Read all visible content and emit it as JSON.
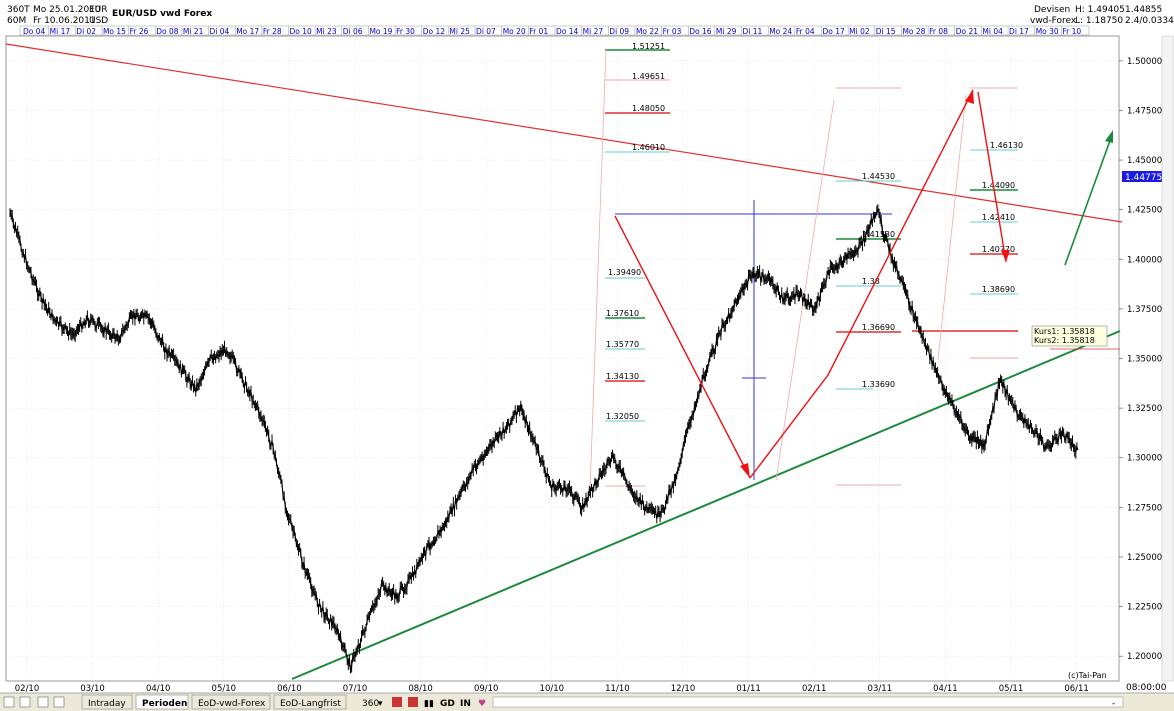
{
  "header": {
    "period_code": "360T",
    "interval_code": "60M",
    "date_from": "Mo 25.01.2010",
    "date_to": "Fr 10.06.2011",
    "base": "EUR",
    "quote": "USD",
    "title": "EUR/USD  vwd Forex",
    "category": "Devisen",
    "source": "vwd-Forex",
    "high_label": "H: 1.49405",
    "low_label": "L: 1.18750",
    "top_right_value": "1.44855",
    "top_right_sub": "2.4/0.0334"
  },
  "date_strip": [
    "Do 04",
    "Mi 17",
    "Di 02",
    "Mo 15",
    "Fr 26",
    "Do 08",
    "Mi 21",
    "Di 04",
    "Mo 17",
    "Fr 28",
    "Do 10",
    "Mi 23",
    "Di 06",
    "Mo 19",
    "Fr 30",
    "Do 12",
    "Mi 25",
    "Di 07",
    "Mo 20",
    "Fr 01",
    "Do 14",
    "Mi 27",
    "Di 09",
    "Mo 22",
    "Fr 03",
    "Do 16",
    "Mi 29",
    "Di 11",
    "Mo 24",
    "Fr 04",
    "Do 17",
    "Mi 02",
    "Di 15",
    "Mo 28",
    "Fr 08",
    "Do 21",
    "Mi 04",
    "Di 17",
    "Mo 30",
    "Fr 10"
  ],
  "chart_data": {
    "type": "line",
    "title": "EUR/USD  vwd Forex",
    "x_ticks": [
      "02/10",
      "03/10",
      "04/10",
      "05/10",
      "06/10",
      "07/10",
      "08/10",
      "09/10",
      "10/10",
      "11/10",
      "12/10",
      "01/11",
      "02/11",
      "03/11",
      "04/11",
      "05/11",
      "06/11"
    ],
    "y_ticks": [
      "1.20000",
      "1.22500",
      "1.25000",
      "1.27500",
      "1.30000",
      "1.32500",
      "1.35000",
      "1.37500",
      "1.40000",
      "1.42500",
      "1.45000",
      "1.47500",
      "1.50000"
    ],
    "ylim": [
      1.1875,
      1.5125
    ],
    "current_price": "1.44775",
    "series": [
      {
        "x": [
          0,
          1,
          2,
          3,
          4,
          5,
          6,
          7,
          8,
          9,
          10,
          11,
          12,
          13,
          14,
          15,
          16,
          17,
          18,
          19,
          20,
          21,
          22,
          23,
          24,
          25,
          26,
          27,
          28,
          29,
          30,
          31,
          32,
          33,
          34,
          35,
          36,
          37,
          38,
          39,
          40,
          41,
          42,
          43,
          44,
          45,
          46,
          47,
          48,
          49,
          50,
          51,
          52,
          53,
          54,
          55,
          56,
          57,
          58,
          59,
          60,
          61,
          62,
          63,
          64,
          65,
          66,
          67,
          68,
          69
        ],
        "values": [
          1.423,
          1.4,
          1.38,
          1.368,
          1.362,
          1.37,
          1.365,
          1.36,
          1.372,
          1.37,
          1.355,
          1.345,
          1.335,
          1.35,
          1.355,
          1.34,
          1.325,
          1.305,
          1.27,
          1.245,
          1.225,
          1.215,
          1.195,
          1.215,
          1.235,
          1.23,
          1.24,
          1.255,
          1.265,
          1.28,
          1.295,
          1.305,
          1.315,
          1.325,
          1.305,
          1.285,
          1.285,
          1.275,
          1.29,
          1.3,
          1.285,
          1.275,
          1.27,
          1.29,
          1.32,
          1.345,
          1.365,
          1.38,
          1.393,
          1.39,
          1.38,
          1.382,
          1.375,
          1.395,
          1.4,
          1.407,
          1.425,
          1.4,
          1.38,
          1.36,
          1.34,
          1.325,
          1.31,
          1.307,
          1.34,
          1.323,
          1.315,
          1.305,
          1.312,
          1.304
        ]
      }
    ],
    "annotations": {
      "fib_labels_left": [
        "1.51251",
        "1.49651",
        "1.48050",
        "1.46010",
        "1.39490",
        "1.37610",
        "1.35770",
        "1.34130",
        "1.32050"
      ],
      "fib_labels_mid": [
        "1.44530",
        "1.41530",
        "1.38",
        "1.36690",
        "1.33690"
      ],
      "fib_labels_right": [
        "1.46130",
        "1.44090",
        "1.42410",
        "1.40770",
        "1.38690"
      ],
      "kurs": [
        "Kurs1: 1.35818",
        "Kurs2: 1.35818"
      ],
      "copyright": "(c)Tai-Pan"
    }
  },
  "footer": {
    "tabs": [
      "Intraday",
      "Perioden",
      "EoD-vwd-Forex",
      "EoD-Langfrist"
    ],
    "active_tab": "Perioden",
    "zoom": "360",
    "gd": "GD",
    "in": "IN",
    "time": "08:00:00"
  },
  "colors": {
    "strip_text": "#0000cc",
    "trend_red": "#e03030",
    "trend_green": "#1a8a3a",
    "arrow_red": "#ee1111",
    "fib_cyan": "#66cccc",
    "fib_pink": "#f2aaaa",
    "price": "#000000",
    "blue_lines": "#3333dd"
  }
}
